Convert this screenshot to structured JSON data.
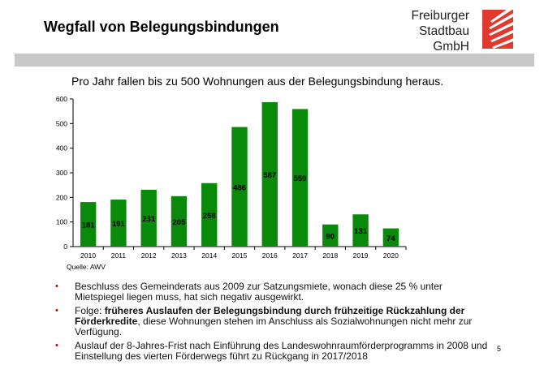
{
  "header": {
    "title": "Wegfall von Belegungsbindungen",
    "logo_line1": "Freiburger",
    "logo_line2": "Stadtbau",
    "logo_line3": "GmbH",
    "logo_color": "#e03a2f"
  },
  "chart_data": {
    "type": "bar",
    "title": "Pro Jahr fallen bis zu 500 Wohnungen aus der Belegungsbindung heraus.",
    "categories": [
      "2010",
      "2011",
      "2012",
      "2013",
      "2014",
      "2015",
      "2016",
      "2017",
      "2018",
      "2019",
      "2020"
    ],
    "values": [
      181,
      191,
      231,
      205,
      258,
      486,
      587,
      559,
      90,
      131,
      74
    ],
    "ylim": [
      0,
      600
    ],
    "yticks": [
      0,
      100,
      200,
      300,
      400,
      500,
      600
    ],
    "grid": false,
    "bar_color": "#0a8a0a",
    "source": "Quelle: AWV"
  },
  "bullets": [
    {
      "normal": "Beschluss des Gemeinderats aus 2009 zur Satzungsmiete, wonach diese 25 % unter Mietspiegel liegen muss, hat sich negativ ausgewirkt."
    },
    {
      "prefix": "Folge:  ",
      "bold": "früheres Auslaufen der Belegungsbindung durch frühzeitige Rückzahlung der Förderkredite",
      "suffix": ", diese Wohnungen stehen im Anschluss als Sozialwohnungen nicht mehr zur Verfügung."
    },
    {
      "normal": "Auslauf der 8-Jahres-Frist nach Einführung des Landeswohnraumförderprogramms in 2008 und Einstellung des vierten Förderwegs führt zu Rückgang in 2017/2018"
    }
  ],
  "bullet_symbol": "•",
  "page_number": "5"
}
